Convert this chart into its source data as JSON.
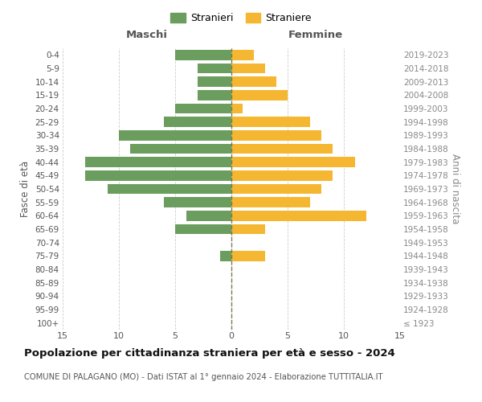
{
  "age_groups": [
    "100+",
    "95-99",
    "90-94",
    "85-89",
    "80-84",
    "75-79",
    "70-74",
    "65-69",
    "60-64",
    "55-59",
    "50-54",
    "45-49",
    "40-44",
    "35-39",
    "30-34",
    "25-29",
    "20-24",
    "15-19",
    "10-14",
    "5-9",
    "0-4"
  ],
  "birth_years": [
    "≤ 1923",
    "1924-1928",
    "1929-1933",
    "1934-1938",
    "1939-1943",
    "1944-1948",
    "1949-1953",
    "1954-1958",
    "1959-1963",
    "1964-1968",
    "1969-1973",
    "1974-1978",
    "1979-1983",
    "1984-1988",
    "1989-1993",
    "1994-1998",
    "1999-2003",
    "2004-2008",
    "2009-2013",
    "2014-2018",
    "2019-2023"
  ],
  "maschi": [
    0,
    0,
    0,
    0,
    0,
    1,
    0,
    5,
    4,
    6,
    11,
    13,
    13,
    9,
    10,
    6,
    5,
    3,
    3,
    3,
    5
  ],
  "femmine": [
    0,
    0,
    0,
    0,
    0,
    3,
    0,
    3,
    12,
    7,
    8,
    9,
    11,
    9,
    8,
    7,
    1,
    5,
    4,
    3,
    2
  ],
  "male_color": "#6b9e5e",
  "female_color": "#f5b731",
  "dashed_line_color": "#7a7a50",
  "grid_color": "#cccccc",
  "bg_color": "#ffffff",
  "title": "Popolazione per cittadinanza straniera per età e sesso - 2024",
  "subtitle": "COMUNE DI PALAGANO (MO) - Dati ISTAT al 1° gennaio 2024 - Elaborazione TUTTITALIA.IT",
  "left_header": "Maschi",
  "right_header": "Femmine",
  "left_axis_label": "Fasce di età",
  "right_axis_label": "Anni di nascita",
  "legend_stranieri": "Stranieri",
  "legend_straniere": "Straniere",
  "xlim": 15,
  "figsize": [
    6.0,
    5.0
  ],
  "dpi": 100
}
